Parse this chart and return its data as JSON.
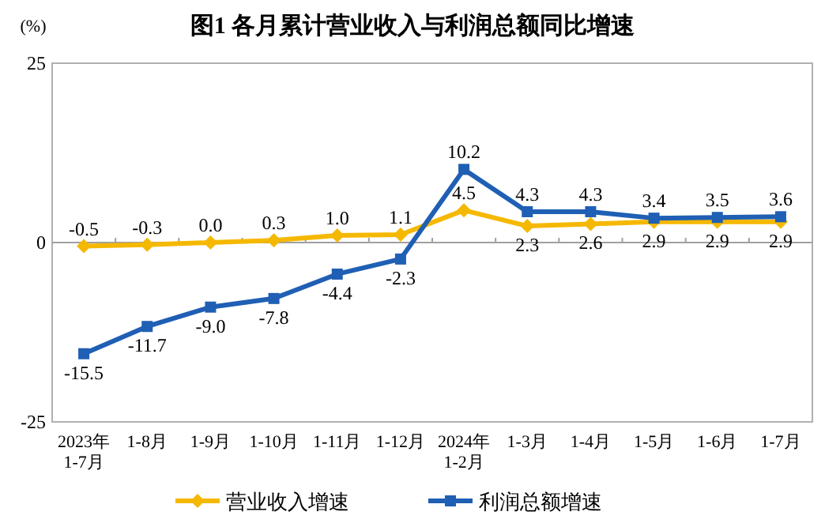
{
  "chart_data": {
    "type": "line",
    "title": "图1  各月累计营业收入与利润总额同比增速",
    "ylabel": "(%)",
    "categories": [
      "2023年\n1-7月",
      "1-8月",
      "1-9月",
      "1-10月",
      "1-11月",
      "1-12月",
      "2024年\n1-2月",
      "1-3月",
      "1-4月",
      "1-5月",
      "1-6月",
      "1-7月"
    ],
    "series": [
      {
        "name": "营业收入增速",
        "color": "#f5b800",
        "marker": "diamond",
        "values": [
          -0.5,
          -0.3,
          0.0,
          0.3,
          1.0,
          1.1,
          4.5,
          2.3,
          2.6,
          2.9,
          2.9,
          2.9
        ],
        "value_labels": [
          "-0.5",
          "-0.3",
          "0.0",
          "0.3",
          "1.0",
          "1.1",
          "4.5",
          "2.3",
          "2.6",
          "2.9",
          "2.9",
          "2.9"
        ]
      },
      {
        "name": "利润总额增速",
        "color": "#1f5fb4",
        "marker": "square",
        "values": [
          -15.5,
          -11.7,
          -9.0,
          -7.8,
          -4.4,
          -2.3,
          10.2,
          4.3,
          4.3,
          3.4,
          3.5,
          3.6
        ],
        "value_labels": [
          "-15.5",
          "-11.7",
          "-9.0",
          "-7.8",
          "-4.4",
          "-2.3",
          "10.2",
          "4.3",
          "4.3",
          "3.4",
          "3.5",
          "3.6"
        ]
      }
    ],
    "ylim": [
      -25,
      25
    ],
    "yticks": [
      -25,
      0,
      25
    ],
    "ref_lines": [
      {
        "axis": "y",
        "value": 0,
        "color": "#a0a0a0"
      }
    ],
    "grid": false,
    "legend": "bottom",
    "line_style": "solid"
  }
}
